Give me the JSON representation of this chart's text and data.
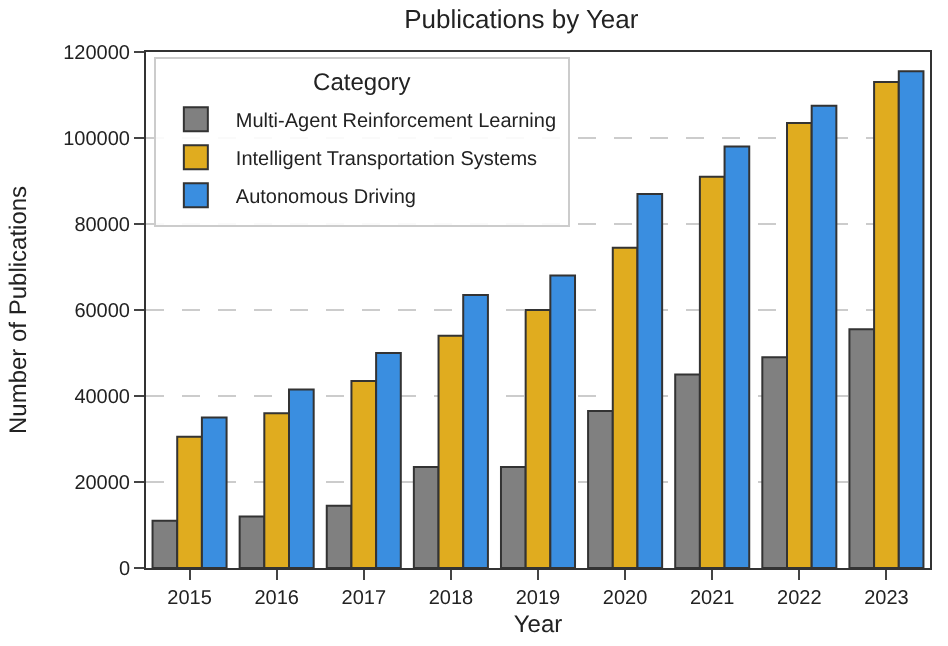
{
  "chart_data": {
    "type": "bar",
    "title": "Publications by Year",
    "xlabel": "Year",
    "ylabel": "Number of Publications",
    "legend_title": "Category",
    "categories": [
      "2015",
      "2016",
      "2017",
      "2018",
      "2019",
      "2020",
      "2021",
      "2022",
      "2023"
    ],
    "series": [
      {
        "name": "Multi-Agent Reinforcement Learning",
        "color": "#808080",
        "values": [
          11000,
          12000,
          14500,
          23500,
          23500,
          36500,
          45000,
          49000,
          55500
        ]
      },
      {
        "name": "Intelligent Transportation Systems",
        "color": "#e0ac1f",
        "values": [
          30500,
          36000,
          43500,
          54000,
          60000,
          74500,
          91000,
          103500,
          113000
        ]
      },
      {
        "name": "Autonomous Driving",
        "color": "#3a8ee0",
        "values": [
          35000,
          41500,
          50000,
          63500,
          68000,
          87000,
          98000,
          107500,
          115500
        ]
      }
    ],
    "ylim": [
      0,
      120000
    ],
    "yticks": [
      0,
      20000,
      40000,
      60000,
      80000,
      100000,
      120000
    ],
    "grid": "y",
    "legend": "top left"
  }
}
